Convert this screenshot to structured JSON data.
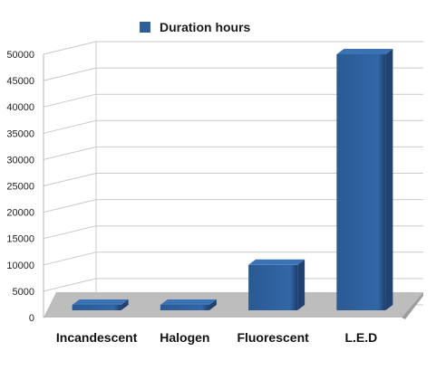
{
  "chart_data": {
    "type": "bar",
    "title": "",
    "xlabel": "",
    "ylabel": "",
    "categories": [
      "Incandescent",
      "Halogen",
      "Fluorescent",
      "L.E.D"
    ],
    "series": [
      {
        "name": "Duration hours",
        "values": [
          1000,
          2000,
          10000,
          50000
        ]
      }
    ],
    "ylim": [
      0,
      50000
    ],
    "yticks": [
      "0",
      "5000",
      "10000",
      "15000",
      "20000",
      "25000",
      "30000",
      "35000",
      "40000",
      "45000",
      "50000"
    ],
    "grid": true,
    "legend": "top",
    "three_d": true,
    "colors": {
      "bar": "#2e5f98",
      "floor": "#bdbdbd"
    }
  }
}
